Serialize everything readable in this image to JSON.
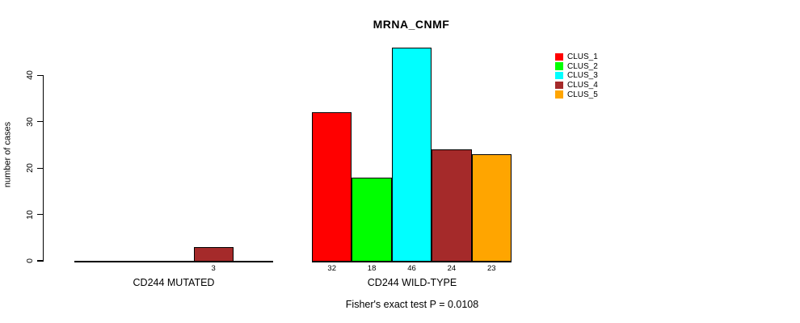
{
  "chart_data": {
    "type": "bar",
    "title": "MRNA_CNMF",
    "ylabel": "number of cases",
    "ylim": [
      0,
      46
    ],
    "yticks": [
      0,
      10,
      20,
      30,
      40
    ],
    "grid": false,
    "clusters": [
      "CLUS_1",
      "CLUS_2",
      "CLUS_3",
      "CLUS_4",
      "CLUS_5"
    ],
    "colors": [
      "#FF0000",
      "#00FF00",
      "#00FFFF",
      "#A52A2A",
      "#FFA500"
    ],
    "groups": [
      {
        "label": "CD244 MUTATED",
        "values": [
          0,
          0,
          0,
          3,
          0
        ]
      },
      {
        "label": "CD244 WILD-TYPE",
        "values": [
          32,
          18,
          46,
          24,
          23
        ]
      }
    ],
    "annotation": "Fisher's exact test P = 0.0108",
    "legend": {
      "position": "top-right",
      "entries": [
        "CLUS_1",
        "CLUS_2",
        "CLUS_3",
        "CLUS_4",
        "CLUS_5"
      ]
    }
  }
}
